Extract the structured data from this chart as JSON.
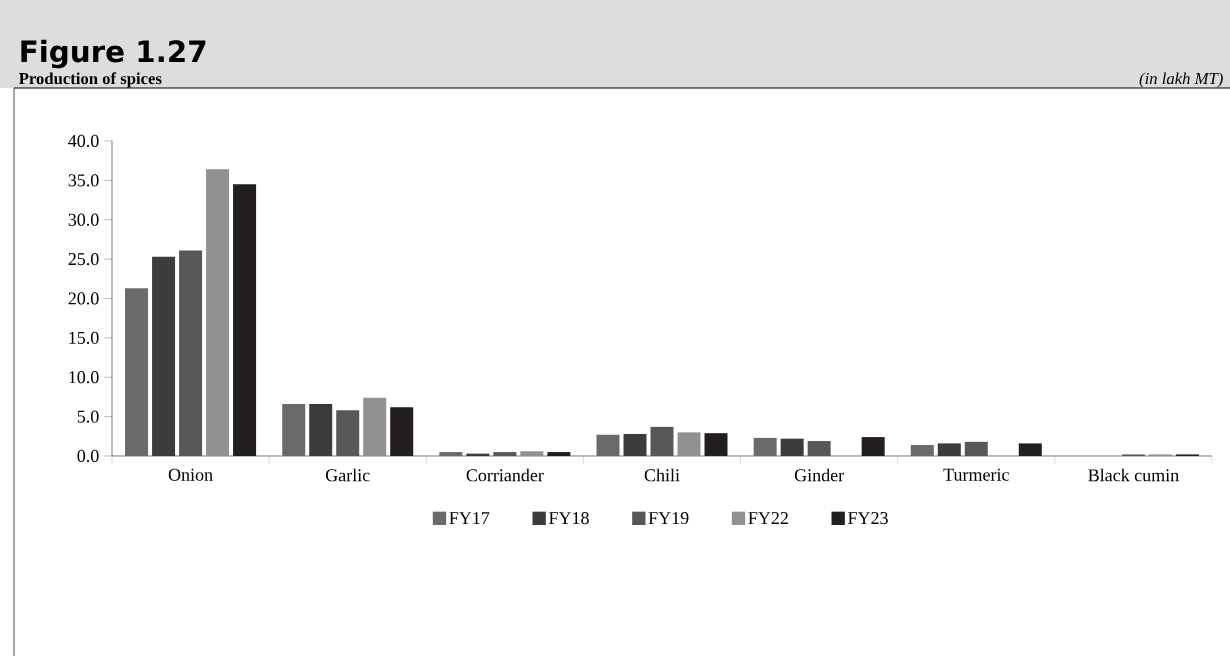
{
  "chart_data": {
    "type": "bar",
    "title": "Figure 1.27",
    "subtitle": "Production of spices",
    "annotations": [
      "(in lakh MT)"
    ],
    "categories": [
      "Onion",
      "Garlic",
      "Corriander",
      "Chili",
      "Ginder",
      "Turmeric",
      "Black cumin"
    ],
    "series": [
      {
        "name": "FY17",
        "color": "#6a6a6c",
        "values": [
          21.3,
          6.6,
          0.5,
          2.7,
          2.3,
          1.4,
          null
        ]
      },
      {
        "name": "FY18",
        "color": "#3c3c3c",
        "values": [
          25.3,
          6.6,
          0.3,
          2.8,
          2.2,
          1.6,
          null
        ]
      },
      {
        "name": "FY19",
        "color": "#58585a",
        "values": [
          26.1,
          5.8,
          0.5,
          3.7,
          1.9,
          1.8,
          0.2
        ]
      },
      {
        "name": "FY22",
        "color": "#919194",
        "values": [
          36.4,
          7.4,
          0.6,
          3.0,
          null,
          null,
          0.2
        ]
      },
      {
        "name": "FY23",
        "color": "#231f20",
        "values": [
          34.5,
          6.2,
          0.5,
          2.9,
          2.4,
          1.6,
          0.2
        ]
      }
    ],
    "ylim": [
      0,
      40
    ],
    "yticks": [
      {
        "value": 0,
        "label": "0.0"
      },
      {
        "value": 5,
        "label": "5.0"
      },
      {
        "value": 10,
        "label": "10.0"
      },
      {
        "value": 15,
        "label": "15.0"
      },
      {
        "value": 20,
        "label": "20.0"
      },
      {
        "value": 25,
        "label": "25.0"
      },
      {
        "value": 30,
        "label": "30.0"
      },
      {
        "value": 35,
        "label": "35.0"
      },
      {
        "value": 40,
        "label": "40.0"
      }
    ],
    "grid": false,
    "legend": "bottom"
  }
}
